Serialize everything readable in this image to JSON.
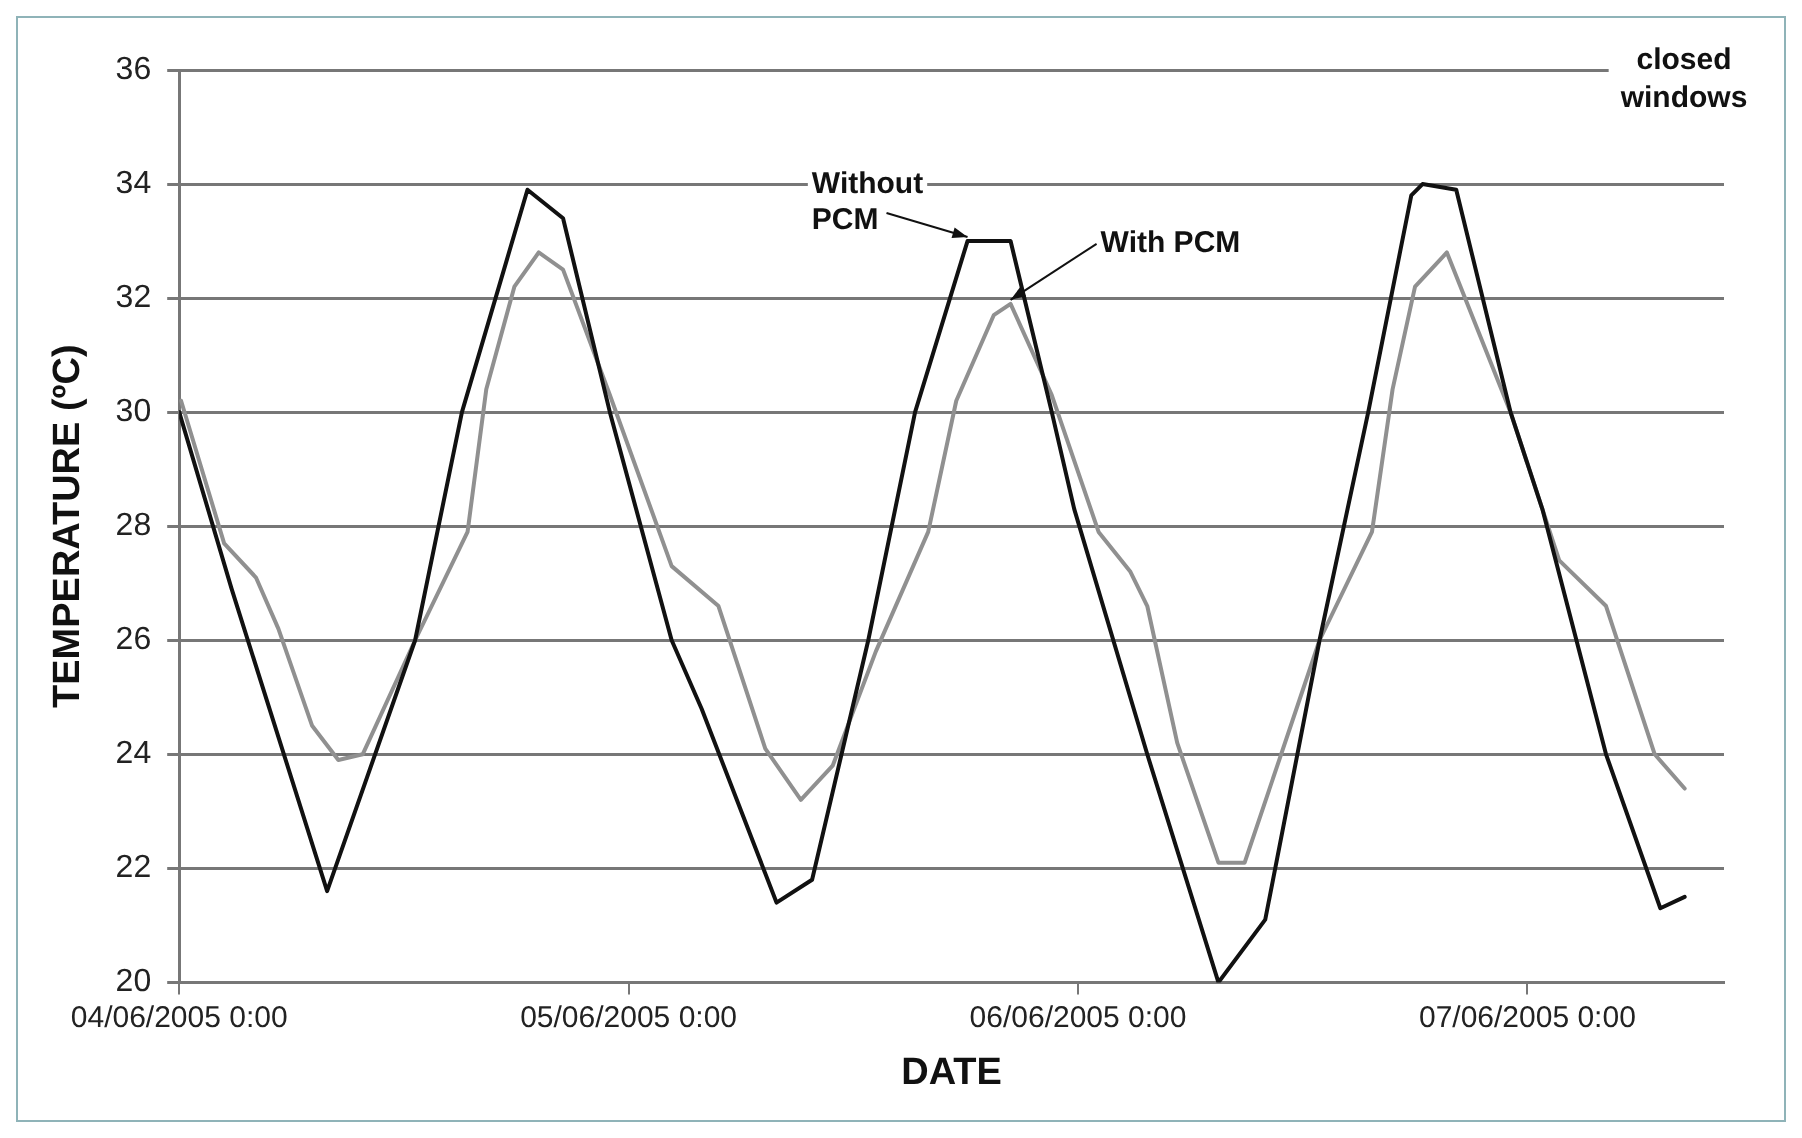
{
  "chart_data": {
    "type": "line",
    "xlabel": "DATE",
    "ylabel": "TEMPERATURE (ºC)",
    "xlim": [
      "2005-06-04T00:00",
      "2005-06-07T10:30"
    ],
    "xticks": [
      {
        "value": "2005-06-04T00:00",
        "label": "04/06/2005 0:00"
      },
      {
        "value": "2005-06-05T00:00",
        "label": "05/06/2005 0:00"
      },
      {
        "value": "2005-06-06T00:00",
        "label": "06/06/2005 0:00"
      },
      {
        "value": "2005-06-07T00:00",
        "label": "07/06/2005 0:00"
      }
    ],
    "ylim": [
      20,
      36
    ],
    "yticks": [
      20,
      22,
      24,
      26,
      28,
      30,
      32,
      34,
      36
    ],
    "grid": "y",
    "legend": false,
    "marker": "none",
    "line_style": "solid",
    "annotations": [
      "closed windows"
    ],
    "series": [
      {
        "name": "Without PCM",
        "color": "#111111",
        "x": [
          "2005-06-04T00:00",
          "2005-06-04T02:48",
          "2005-06-04T07:54",
          "2005-06-04T12:36",
          "2005-06-04T15:06",
          "2005-06-04T18:36",
          "2005-06-04T20:30",
          "2005-06-04T23:00",
          "2005-06-05T02:18",
          "2005-06-05T03:54",
          "2005-06-05T07:54",
          "2005-06-05T09:48",
          "2005-06-05T12:48",
          "2005-06-05T15:18",
          "2005-06-05T18:06",
          "2005-06-05T20:24",
          "2005-06-05T22:36",
          "2005-06-05T23:48",
          "2005-06-06T03:42",
          "2005-06-06T07:30",
          "2005-06-06T10:00",
          "2005-06-06T12:54",
          "2005-06-06T15:30",
          "2005-06-06T17:48",
          "2005-06-06T18:24",
          "2005-06-06T20:12",
          "2005-06-06T23:06",
          "2005-06-07T00:48",
          "2005-06-07T04:12",
          "2005-06-07T07:06",
          "2005-06-07T08:24"
        ],
        "values": [
          30.0,
          26.9,
          21.6,
          26.0,
          30.0,
          33.9,
          33.4,
          30.0,
          26.0,
          24.8,
          21.4,
          21.8,
          26.0,
          30.0,
          33.0,
          33.0,
          30.0,
          28.3,
          24.0,
          20.0,
          21.1,
          26.0,
          30.0,
          33.8,
          34.0,
          33.9,
          30.0,
          28.3,
          24.0,
          21.3,
          21.5
        ]
      },
      {
        "name": "With PCM",
        "color": "#909090",
        "x": [
          "2005-06-04T00:06",
          "2005-06-04T02:24",
          "2005-06-04T04:06",
          "2005-06-04T05:18",
          "2005-06-04T07:06",
          "2005-06-04T08:30",
          "2005-06-04T09:48",
          "2005-06-04T12:36",
          "2005-06-04T15:24",
          "2005-06-04T16:24",
          "2005-06-04T17:54",
          "2005-06-04T19:12",
          "2005-06-04T20:30",
          "2005-06-04T23:00",
          "2005-06-05T02:18",
          "2005-06-05T04:48",
          "2005-06-05T07:18",
          "2005-06-05T09:12",
          "2005-06-05T10:54",
          "2005-06-05T13:12",
          "2005-06-05T16:00",
          "2005-06-05T17:30",
          "2005-06-05T19:30",
          "2005-06-05T20:24",
          "2005-06-05T22:36",
          "2005-06-06T01:06",
          "2005-06-06T02:48",
          "2005-06-06T03:42",
          "2005-06-06T05:18",
          "2005-06-06T07:30",
          "2005-06-06T08:54",
          "2005-06-06T12:54",
          "2005-06-06T15:42",
          "2005-06-06T16:48",
          "2005-06-06T18:00",
          "2005-06-06T19:42",
          "2005-06-06T23:06",
          "2005-06-07T01:42",
          "2005-06-07T04:12",
          "2005-06-07T06:48",
          "2005-06-07T08:24"
        ],
        "values": [
          30.2,
          27.7,
          27.1,
          26.2,
          24.5,
          23.9,
          24.0,
          26.0,
          27.9,
          30.4,
          32.2,
          32.8,
          32.5,
          30.3,
          27.3,
          26.6,
          24.1,
          23.2,
          23.8,
          25.8,
          27.9,
          30.2,
          31.7,
          31.9,
          30.3,
          27.9,
          27.2,
          26.6,
          24.2,
          22.1,
          22.1,
          26.0,
          27.9,
          30.4,
          32.2,
          32.8,
          30.0,
          27.4,
          26.6,
          24.0,
          23.4
        ]
      }
    ]
  }
}
